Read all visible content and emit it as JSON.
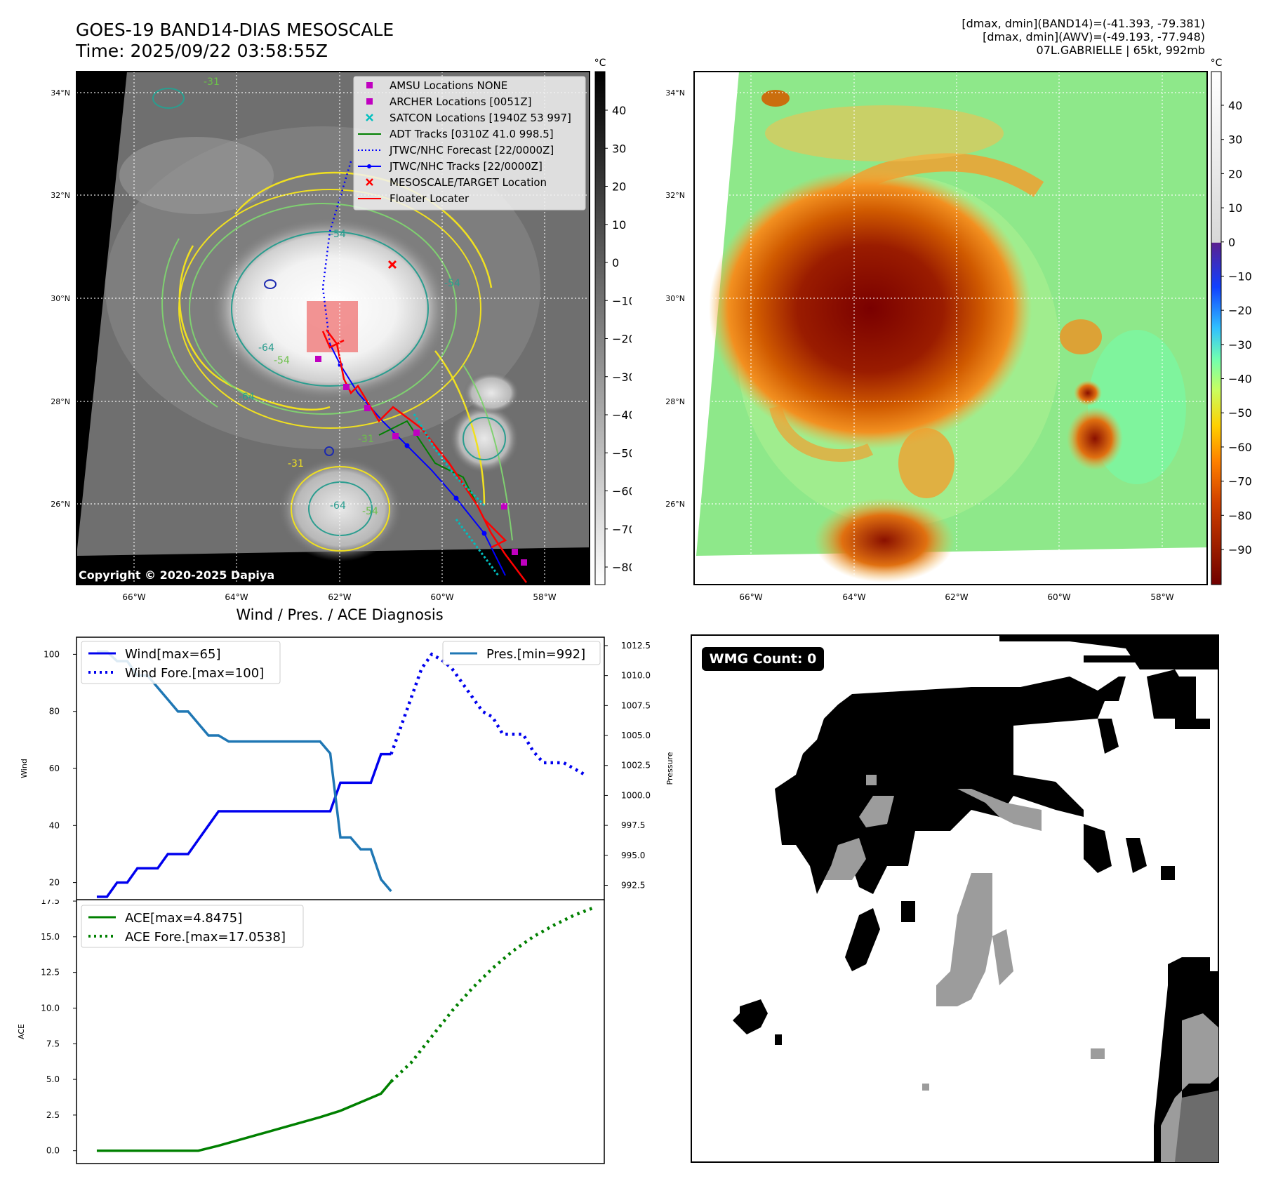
{
  "header": {
    "title_line1": "GOES-19 BAND14-DIAS MESOSCALE",
    "title_line2": "Time: 2025/09/22 03:58:55Z",
    "stats_line1": "[dmax, dmin](BAND14)=(-41.393, -79.381)",
    "stats_line2": "[dmax, dmin](AWV)=(-49.193, -77.948)",
    "stats_line3": "07L.GABRIELLE | 65kt, 992mb"
  },
  "ir_panel": {
    "lat_ticks": [
      "34°N",
      "32°N",
      "30°N",
      "28°N",
      "26°N"
    ],
    "lon_ticks": [
      "66°W",
      "64°W",
      "62°W",
      "60°W",
      "58°W"
    ],
    "colorbar_unit": "°C",
    "colorbar_ticks": [
      "40",
      "30",
      "20",
      "10",
      "0",
      "−10",
      "−20",
      "−30",
      "−40",
      "−50",
      "−60",
      "−70",
      "−80"
    ],
    "contour_labels": [
      "-31",
      "-54",
      "-64",
      "-54",
      "-64",
      "-31",
      "-31",
      "-64",
      "-54",
      "-54"
    ],
    "copyright": "Copyright © 2020-2025 Dapiya",
    "legend": [
      {
        "label": "AMSU Locations NONE",
        "marker": "square",
        "color": "#c000c0"
      },
      {
        "label": "ARCHER Locations [0051Z]",
        "marker": "square",
        "color": "#c000c0"
      },
      {
        "label": "SATCON Locations [1940Z 53 997]",
        "marker": "x",
        "color": "#00bfbf"
      },
      {
        "label": "ADT Tracks [0310Z 41.0 998.5]",
        "marker": "line",
        "color": "#008000"
      },
      {
        "label": "JTWC/NHC Forecast [22/0000Z]",
        "marker": "dotted",
        "color": "#0000ff"
      },
      {
        "label": "JTWC/NHC Tracks [22/0000Z]",
        "marker": "line-dot",
        "color": "#0000ff"
      },
      {
        "label": "MESOSCALE/TARGET Location",
        "marker": "x",
        "color": "#ff0000"
      },
      {
        "label": "Floater Locater",
        "marker": "line",
        "color": "#ff0000"
      }
    ]
  },
  "awv_panel": {
    "lat_ticks": [
      "34°N",
      "32°N",
      "30°N",
      "28°N",
      "26°N"
    ],
    "lon_ticks": [
      "66°W",
      "64°W",
      "62°W",
      "60°W",
      "58°W"
    ],
    "colorbar_unit": "°C",
    "colorbar_ticks": [
      "40",
      "30",
      "20",
      "10",
      "0",
      "−10",
      "−20",
      "−30",
      "−40",
      "−50",
      "−60",
      "−70",
      "−80",
      "−90"
    ]
  },
  "wmg_panel": {
    "badge": "WMG Count: 0"
  },
  "chart_data": [
    {
      "type": "line",
      "title": "Wind / Pres. / ACE Diagnosis",
      "ylabel": "Wind",
      "ylabel_right": "Pressure",
      "ylim": [
        14,
        106
      ],
      "ylim_right": [
        991.3,
        1013.2
      ],
      "yticks": [
        20,
        40,
        60,
        80,
        100
      ],
      "yticks_right": [
        "992.5",
        "995.0",
        "997.5",
        "1000.0",
        "1002.5",
        "1005.0",
        "1007.5",
        "1010.0",
        "1012.5"
      ],
      "xlim": [
        -1,
        25
      ],
      "legend_left": [
        "Wind[max=65]",
        "Wind Fore.[max=100]"
      ],
      "legend_right": [
        "Pres.[min=992]"
      ],
      "series": [
        {
          "name": "Wind[max=65]",
          "axis": "left",
          "color": "#0000ee",
          "style": "solid",
          "x": [
            0,
            0.5,
            1,
            1.5,
            2,
            2.5,
            3,
            3.5,
            4,
            4.5,
            5,
            5.5,
            6,
            7,
            8,
            9,
            10,
            11,
            11.5,
            12,
            12.5,
            13,
            13.5,
            14,
            14.5
          ],
          "y": [
            15,
            15,
            20,
            20,
            25,
            25,
            25,
            30,
            30,
            30,
            35,
            40,
            45,
            45,
            45,
            45,
            45,
            45,
            45,
            55,
            55,
            55,
            55,
            65,
            65
          ]
        },
        {
          "name": "Wind Fore.[max=100]",
          "axis": "left",
          "color": "#0000ee",
          "style": "dotted",
          "x": [
            14.5,
            15,
            15.5,
            16,
            16.5,
            17,
            17.5,
            18,
            18.5,
            19,
            19.5,
            20,
            20.5,
            21,
            21.5,
            22,
            22.5,
            23,
            23.5,
            24
          ],
          "y": [
            65,
            75,
            85,
            95,
            100,
            98,
            95,
            90,
            85,
            80,
            78,
            72,
            72,
            72,
            66,
            62,
            62,
            62,
            60,
            58
          ]
        },
        {
          "name": "Pres.[min=992]",
          "axis": "right",
          "color": "#1f77b4",
          "style": "solid",
          "x": [
            0,
            0.5,
            1,
            1.5,
            2,
            2.5,
            3,
            3.5,
            4,
            4.5,
            5,
            5.5,
            6,
            6.5,
            7,
            8,
            9,
            10,
            11,
            11.5,
            12,
            12.5,
            13,
            13.5,
            14,
            14.5
          ],
          "y": [
            1012,
            1012,
            1011.2,
            1011.2,
            1010,
            1010,
            1009,
            1008,
            1007,
            1007,
            1006,
            1005,
            1005,
            1004.5,
            1004.5,
            1004.5,
            1004.5,
            1004.5,
            1004.5,
            1003.5,
            996.5,
            996.5,
            995.5,
            995.5,
            993,
            992
          ]
        }
      ]
    },
    {
      "type": "line",
      "ylabel": "ACE",
      "ylim": [
        -0.9,
        17.6
      ],
      "yticks": [
        "0.0",
        "2.5",
        "5.0",
        "7.5",
        "10.0",
        "12.5",
        "15.0",
        "17.5"
      ],
      "xlim": [
        -1,
        25
      ],
      "legend": [
        "ACE[max=4.8475]",
        "ACE Fore.[max=17.0538]"
      ],
      "series": [
        {
          "name": "ACE[max=4.8475]",
          "color": "#008000",
          "style": "solid",
          "x": [
            0,
            1,
            2,
            3,
            4,
            5,
            6,
            7,
            8,
            9,
            10,
            11,
            12,
            13,
            14,
            14.5
          ],
          "y": [
            0,
            0,
            0,
            0,
            0,
            0,
            0.35,
            0.75,
            1.15,
            1.55,
            1.95,
            2.35,
            2.8,
            3.4,
            4.0,
            4.85
          ]
        },
        {
          "name": "ACE Fore.[max=17.0538]",
          "color": "#008000",
          "style": "dotted",
          "x": [
            14.5,
            15.5,
            16.5,
            17.5,
            18.5,
            19.5,
            20.5,
            21.5,
            22.5,
            23.5,
            24.5
          ],
          "y": [
            4.85,
            6.2,
            8.0,
            9.8,
            11.4,
            12.8,
            14.0,
            15.0,
            15.8,
            16.5,
            17.05
          ]
        }
      ]
    }
  ]
}
